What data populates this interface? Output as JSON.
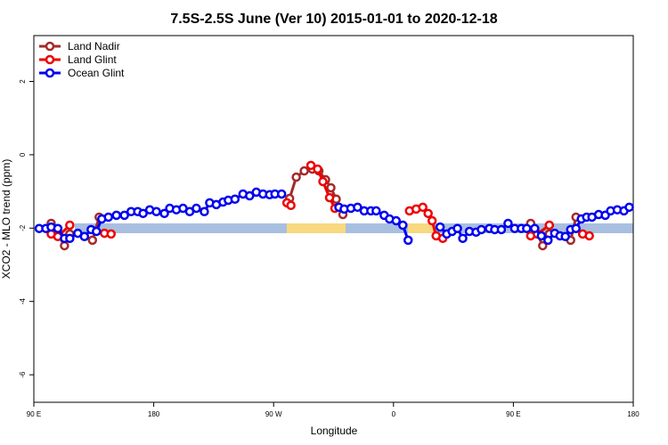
{
  "chart_data": {
    "type": "line",
    "title": "7.5S-2.5S June (Ver 10)   2015-01-01 to 2020-12-18",
    "xlabel": "Longitude",
    "ylabel": "XCO2 - MLO trend (ppm)",
    "xlim": [
      90,
      540
    ],
    "ylim": [
      -6.75,
      3.25
    ],
    "xticks": [
      {
        "value": 90,
        "label": "90 E"
      },
      180,
      {
        "value": 270,
        "label": "90 W"
      },
      {
        "value": 360,
        "label": "0"
      },
      {
        "value": 450,
        "label": "90 E"
      },
      {
        "value": 540,
        "label": "180"
      }
    ],
    "yticks": [
      2,
      0,
      -2,
      -4,
      -6
    ],
    "grid": false,
    "legend": "top-left",
    "series": [
      {
        "name": "Land Nadir",
        "color": "#a52a2a",
        "x": [
          103,
          108,
          113,
          117,
          125,
          134,
          139,
          210,
          282,
          287,
          293,
          299,
          304,
          309,
          313,
          317,
          322,
          400,
          463,
          468,
          472,
          477,
          485,
          493,
          497
        ],
        "values": [
          -1.87,
          -2.16,
          -2.48,
          -2.16,
          null,
          -2.33,
          -1.7,
          null,
          -1.19,
          -0.61,
          -0.44,
          -0.39,
          -0.44,
          -0.68,
          -0.9,
          -1.21,
          -1.63,
          null,
          -1.87,
          -2.16,
          -2.48,
          -2.16,
          null,
          -2.33,
          -1.7
        ]
      },
      {
        "name": "Land Glint",
        "color": "#ee0000",
        "x": [
          103,
          108,
          117,
          130,
          143,
          148,
          200,
          280,
          283,
          290,
          298,
          303,
          307,
          312,
          316,
          340,
          372,
          377,
          382,
          386,
          389,
          392,
          397,
          430,
          463,
          468,
          477,
          490,
          502,
          507
        ],
        "values": [
          -2.16,
          -2.23,
          -1.92,
          null,
          -2.14,
          -2.16,
          null,
          -1.31,
          -1.38,
          null,
          -0.29,
          -0.39,
          -0.73,
          -1.17,
          -1.46,
          null,
          -1.53,
          -1.48,
          -1.43,
          -1.6,
          -1.8,
          -2.21,
          -2.28,
          null,
          -2.21,
          -2.16,
          -1.92,
          null,
          -2.16,
          -2.21
        ]
      },
      {
        "name": "Ocean Glint",
        "color": "#0000ee",
        "x": [
          94,
          99,
          103,
          108,
          113,
          117,
          123,
          128,
          133,
          137,
          141,
          146,
          152,
          158,
          163,
          168,
          172,
          177,
          182,
          188,
          192,
          197,
          202,
          207,
          212,
          218,
          222,
          227,
          232,
          236,
          241,
          247,
          252,
          257,
          262,
          267,
          271,
          276,
          298,
          319,
          323,
          328,
          333,
          338,
          343,
          347,
          353,
          357,
          362,
          367,
          371,
          383,
          395,
          400,
          404,
          408,
          412,
          417,
          422,
          426,
          432,
          436,
          441,
          446,
          451,
          456,
          460,
          466,
          471,
          476,
          481,
          485,
          489,
          493,
          497,
          501,
          505,
          509,
          514,
          519,
          523,
          528,
          533,
          537
        ],
        "values": [
          -2.01,
          -2.01,
          -1.97,
          -2.01,
          -2.28,
          -2.28,
          -2.14,
          -2.23,
          -2.04,
          -2.09,
          -1.75,
          -1.7,
          -1.65,
          -1.65,
          -1.55,
          -1.55,
          -1.6,
          -1.5,
          -1.55,
          -1.6,
          -1.46,
          -1.5,
          -1.46,
          -1.55,
          -1.46,
          -1.55,
          -1.31,
          -1.36,
          -1.29,
          -1.24,
          -1.21,
          -1.07,
          -1.12,
          -1.02,
          -1.07,
          -1.09,
          -1.07,
          -1.07,
          null,
          -1.43,
          -1.48,
          -1.46,
          -1.43,
          -1.53,
          -1.53,
          -1.53,
          -1.65,
          -1.75,
          -1.8,
          -1.92,
          -2.33,
          null,
          -1.97,
          -2.16,
          -2.09,
          -2.01,
          -2.28,
          -2.09,
          -2.11,
          -2.04,
          -2.01,
          -2.04,
          -2.04,
          -1.87,
          -2.01,
          -2.01,
          -2.01,
          -2.01,
          -2.21,
          -2.33,
          -2.14,
          -2.21,
          -2.23,
          -2.04,
          -2.01,
          -1.75,
          -1.7,
          -1.7,
          -1.63,
          -1.65,
          -1.53,
          -1.5,
          -1.53,
          -1.43
        ]
      }
    ]
  }
}
